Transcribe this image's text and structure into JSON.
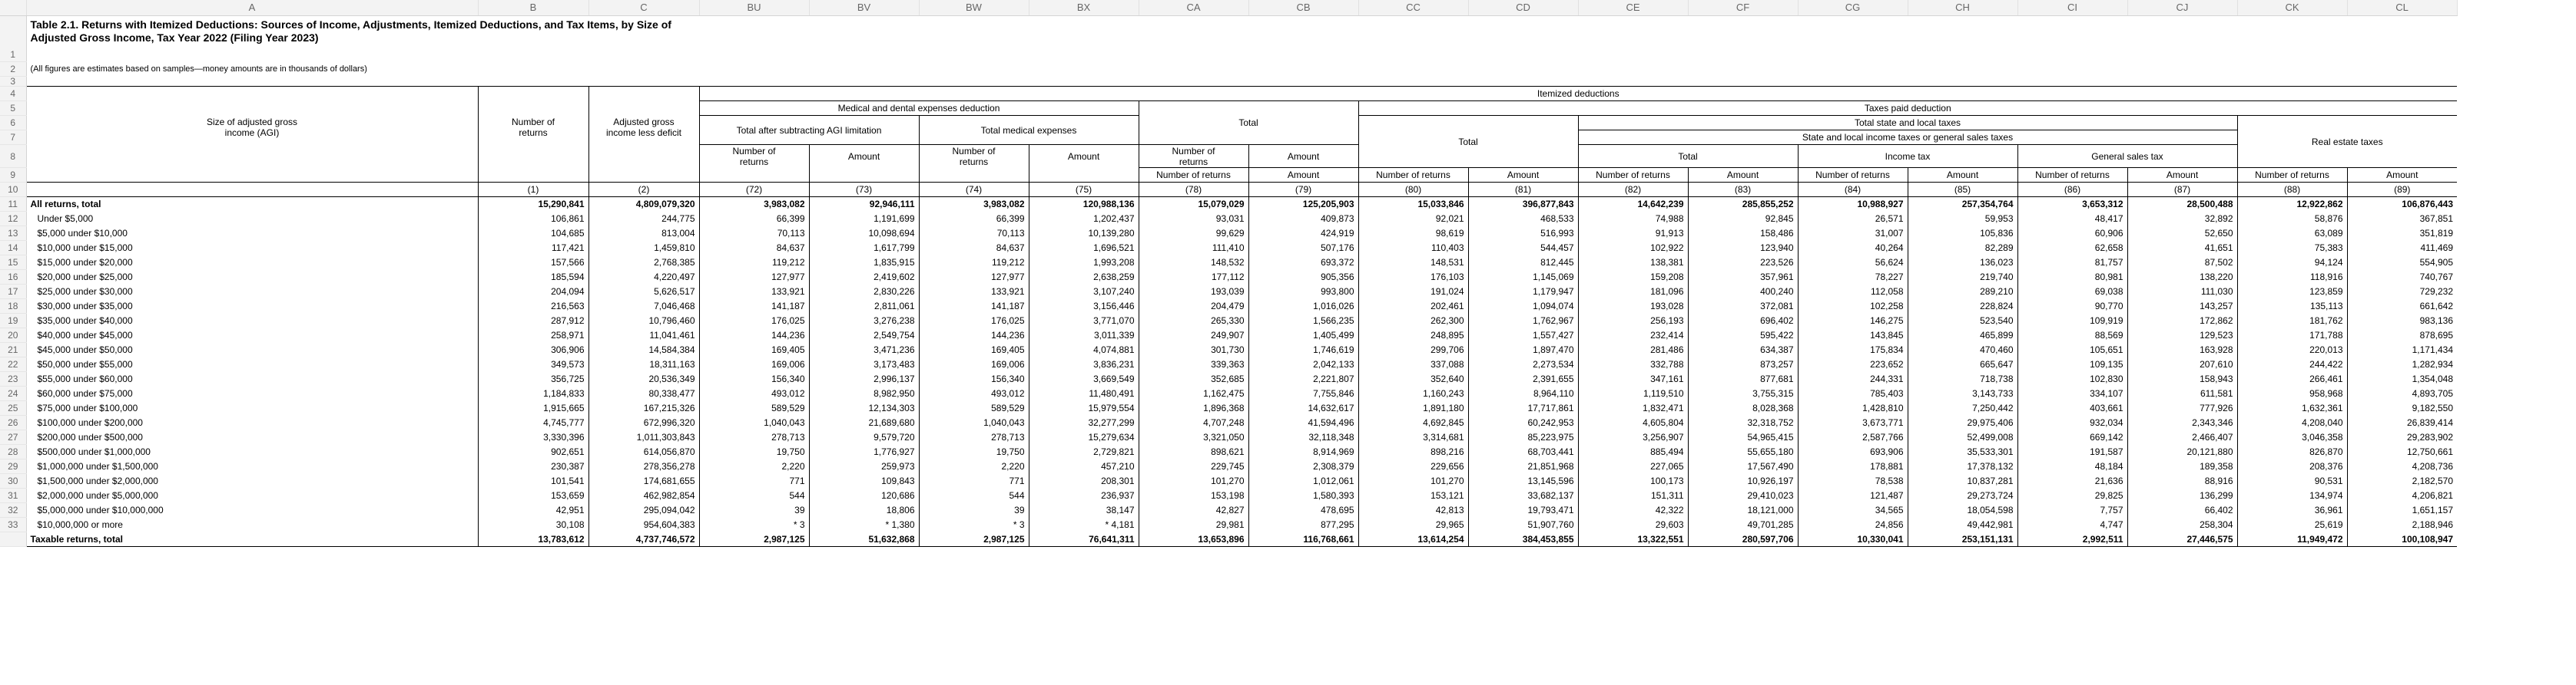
{
  "col_headers": [
    "A",
    "B",
    "C",
    "BU",
    "BV",
    "BW",
    "BX",
    "CA",
    "CB",
    "CC",
    "CD",
    "CE",
    "CF",
    "CG",
    "CH",
    "CI",
    "CJ",
    "CK",
    "CL"
  ],
  "row_numbers": [
    "1",
    "2",
    "3",
    "4",
    "5",
    "6",
    "7",
    "8",
    "9",
    "10",
    "11",
    "12",
    "13",
    "14",
    "15",
    "16",
    "17",
    "18",
    "19",
    "20",
    "21",
    "22",
    "23",
    "24",
    "25",
    "26",
    "27",
    "28",
    "29",
    "30",
    "31",
    "32",
    "33"
  ],
  "title": "Table 2.1.  Returns with Itemized Deductions: Sources of Income, Adjustments, Itemized Deductions, and Tax Items, by Size of Adjusted Gross Income, Tax Year 2022 (Filing Year 2023)",
  "note": "(All figures are estimates based on samples—money amounts are in thousands of dollars)",
  "headers": {
    "agi": "Size of adjusted gross income (AGI)",
    "num_returns": "Number of returns",
    "adj_gross": "Adjusted gross income less deficit",
    "itemized": "Itemized deductions",
    "medical": "Medical and dental expenses deduction",
    "total_after": "Total after subtracting AGI limitation",
    "total_medical": "Total medical expenses",
    "total": "Total",
    "taxes_paid": "Taxes paid deduction",
    "total_state_local": "Total state and local taxes",
    "state_local_income": "State and local income taxes or general sales taxes",
    "income_tax": "Income tax",
    "general_sales": "General sales tax",
    "real_estate": "Real estate taxes",
    "number_of_returns": "Number of returns",
    "amount": "Amount"
  },
  "col_numbers": [
    "(1)",
    "(2)",
    "(72)",
    "(73)",
    "(74)",
    "(75)",
    "(78)",
    "(79)",
    "(80)",
    "(81)",
    "(82)",
    "(83)",
    "(84)",
    "(85)",
    "(86)",
    "(87)",
    "(88)",
    "(89)"
  ],
  "rows": [
    {
      "label": "All returns, total",
      "bold": true,
      "values": [
        "15,290,841",
        "4,809,079,320",
        "3,983,082",
        "92,946,111",
        "3,983,082",
        "120,988,136",
        "15,079,029",
        "125,205,903",
        "15,033,846",
        "396,877,843",
        "14,642,239",
        "285,855,252",
        "10,988,927",
        "257,354,764",
        "3,653,312",
        "28,500,488",
        "12,922,862",
        "106,876,443"
      ]
    },
    {
      "label": "Under $5,000",
      "values": [
        "106,861",
        "244,775",
        "66,399",
        "1,191,699",
        "66,399",
        "1,202,437",
        "93,031",
        "409,873",
        "92,021",
        "468,533",
        "74,988",
        "92,845",
        "26,571",
        "59,953",
        "48,417",
        "32,892",
        "58,876",
        "367,851"
      ]
    },
    {
      "label": "$5,000 under $10,000",
      "values": [
        "104,685",
        "813,004",
        "70,113",
        "10,098,694",
        "70,113",
        "10,139,280",
        "99,629",
        "424,919",
        "98,619",
        "516,993",
        "91,913",
        "158,486",
        "31,007",
        "105,836",
        "60,906",
        "52,650",
        "63,089",
        "351,819"
      ]
    },
    {
      "label": "$10,000 under $15,000",
      "values": [
        "117,421",
        "1,459,810",
        "84,637",
        "1,617,799",
        "84,637",
        "1,696,521",
        "111,410",
        "507,176",
        "110,403",
        "544,457",
        "102,922",
        "123,940",
        "40,264",
        "82,289",
        "62,658",
        "41,651",
        "75,383",
        "411,469"
      ]
    },
    {
      "label": "$15,000 under $20,000",
      "values": [
        "157,566",
        "2,768,385",
        "119,212",
        "1,835,915",
        "119,212",
        "1,993,208",
        "148,532",
        "693,372",
        "148,531",
        "812,445",
        "138,381",
        "223,526",
        "56,624",
        "136,023",
        "81,757",
        "87,502",
        "94,124",
        "554,905"
      ]
    },
    {
      "label": "$20,000 under $25,000",
      "values": [
        "185,594",
        "4,220,497",
        "127,977",
        "2,419,602",
        "127,977",
        "2,638,259",
        "177,112",
        "905,356",
        "176,103",
        "1,145,069",
        "159,208",
        "357,961",
        "78,227",
        "219,740",
        "80,981",
        "138,220",
        "118,916",
        "740,767"
      ]
    },
    {
      "label": "$25,000 under $30,000",
      "values": [
        "204,094",
        "5,626,517",
        "133,921",
        "2,830,226",
        "133,921",
        "3,107,240",
        "193,039",
        "993,800",
        "191,024",
        "1,179,947",
        "181,096",
        "400,240",
        "112,058",
        "289,210",
        "69,038",
        "111,030",
        "123,859",
        "729,232"
      ]
    },
    {
      "label": "$30,000 under $35,000",
      "values": [
        "216,563",
        "7,046,468",
        "141,187",
        "2,811,061",
        "141,187",
        "3,156,446",
        "204,479",
        "1,016,026",
        "202,461",
        "1,094,074",
        "193,028",
        "372,081",
        "102,258",
        "228,824",
        "90,770",
        "143,257",
        "135,113",
        "661,642"
      ]
    },
    {
      "label": "$35,000 under $40,000",
      "values": [
        "287,912",
        "10,796,460",
        "176,025",
        "3,276,238",
        "176,025",
        "3,771,070",
        "265,330",
        "1,566,235",
        "262,300",
        "1,762,967",
        "256,193",
        "696,402",
        "146,275",
        "523,540",
        "109,919",
        "172,862",
        "181,762",
        "983,136"
      ]
    },
    {
      "label": "$40,000 under $45,000",
      "values": [
        "258,971",
        "11,041,461",
        "144,236",
        "2,549,754",
        "144,236",
        "3,011,339",
        "249,907",
        "1,405,499",
        "248,895",
        "1,557,427",
        "232,414",
        "595,422",
        "143,845",
        "465,899",
        "88,569",
        "129,523",
        "171,788",
        "878,695"
      ]
    },
    {
      "label": "$45,000 under $50,000",
      "values": [
        "306,906",
        "14,584,384",
        "169,405",
        "3,471,236",
        "169,405",
        "4,074,881",
        "301,730",
        "1,746,619",
        "299,706",
        "1,897,470",
        "281,486",
        "634,387",
        "175,834",
        "470,460",
        "105,651",
        "163,928",
        "220,013",
        "1,171,434"
      ]
    },
    {
      "label": "$50,000 under $55,000",
      "values": [
        "349,573",
        "18,311,163",
        "169,006",
        "3,173,483",
        "169,006",
        "3,836,231",
        "339,363",
        "2,042,133",
        "337,088",
        "2,273,534",
        "332,788",
        "873,257",
        "223,652",
        "665,647",
        "109,135",
        "207,610",
        "244,422",
        "1,282,934"
      ]
    },
    {
      "label": "$55,000 under $60,000",
      "values": [
        "356,725",
        "20,536,349",
        "156,340",
        "2,996,137",
        "156,340",
        "3,669,549",
        "352,685",
        "2,221,807",
        "352,640",
        "2,391,655",
        "347,161",
        "877,681",
        "244,331",
        "718,738",
        "102,830",
        "158,943",
        "266,461",
        "1,354,048"
      ]
    },
    {
      "label": "$60,000 under $75,000",
      "values": [
        "1,184,833",
        "80,338,477",
        "493,012",
        "8,982,950",
        "493,012",
        "11,480,491",
        "1,162,475",
        "7,755,846",
        "1,160,243",
        "8,964,110",
        "1,119,510",
        "3,755,315",
        "785,403",
        "3,143,733",
        "334,107",
        "611,581",
        "958,968",
        "4,893,705"
      ]
    },
    {
      "label": "$75,000 under $100,000",
      "values": [
        "1,915,665",
        "167,215,326",
        "589,529",
        "12,134,303",
        "589,529",
        "15,979,554",
        "1,896,368",
        "14,632,617",
        "1,891,180",
        "17,717,861",
        "1,832,471",
        "8,028,368",
        "1,428,810",
        "7,250,442",
        "403,661",
        "777,926",
        "1,632,361",
        "9,182,550"
      ]
    },
    {
      "label": "$100,000 under $200,000",
      "values": [
        "4,745,777",
        "672,996,320",
        "1,040,043",
        "21,689,680",
        "1,040,043",
        "32,277,299",
        "4,707,248",
        "41,594,496",
        "4,692,845",
        "60,242,953",
        "4,605,804",
        "32,318,752",
        "3,673,771",
        "29,975,406",
        "932,034",
        "2,343,346",
        "4,208,040",
        "26,839,414"
      ]
    },
    {
      "label": "$200,000 under $500,000",
      "values": [
        "3,330,396",
        "1,011,303,843",
        "278,713",
        "9,579,720",
        "278,713",
        "15,279,634",
        "3,321,050",
        "32,118,348",
        "3,314,681",
        "85,223,975",
        "3,256,907",
        "54,965,415",
        "2,587,766",
        "52,499,008",
        "669,142",
        "2,466,407",
        "3,046,358",
        "29,283,902"
      ]
    },
    {
      "label": "$500,000 under $1,000,000",
      "values": [
        "902,651",
        "614,056,870",
        "19,750",
        "1,776,927",
        "19,750",
        "2,729,821",
        "898,621",
        "8,914,969",
        "898,216",
        "68,703,441",
        "885,494",
        "55,655,180",
        "693,906",
        "35,533,301",
        "191,587",
        "20,121,880",
        "826,870",
        "12,750,661"
      ]
    },
    {
      "label": "$1,000,000 under $1,500,000",
      "values": [
        "230,387",
        "278,356,278",
        "2,220",
        "259,973",
        "2,220",
        "457,210",
        "229,745",
        "2,308,379",
        "229,656",
        "21,851,968",
        "227,065",
        "17,567,490",
        "178,881",
        "17,378,132",
        "48,184",
        "189,358",
        "208,376",
        "4,208,736"
      ]
    },
    {
      "label": "$1,500,000 under $2,000,000",
      "values": [
        "101,541",
        "174,681,655",
        "771",
        "109,843",
        "771",
        "208,301",
        "101,270",
        "1,012,061",
        "101,270",
        "13,145,596",
        "100,173",
        "10,926,197",
        "78,538",
        "10,837,281",
        "21,636",
        "88,916",
        "90,531",
        "2,182,570"
      ]
    },
    {
      "label": "$2,000,000 under $5,000,000",
      "values": [
        "153,659",
        "462,982,854",
        "544",
        "120,686",
        "544",
        "236,937",
        "153,198",
        "1,580,393",
        "153,121",
        "33,682,137",
        "151,311",
        "29,410,023",
        "121,487",
        "29,273,724",
        "29,825",
        "136,299",
        "134,974",
        "4,206,821"
      ]
    },
    {
      "label": "$5,000,000 under $10,000,000",
      "values": [
        "42,951",
        "295,094,042",
        "39",
        "18,806",
        "39",
        "38,147",
        "42,827",
        "478,695",
        "42,813",
        "19,793,471",
        "42,322",
        "18,121,000",
        "34,565",
        "18,054,598",
        "7,757",
        "66,402",
        "36,961",
        "1,651,157"
      ]
    },
    {
      "label": "$10,000,000 or more",
      "values": [
        "30,108",
        "954,604,383",
        "* 3",
        "* 1,380",
        "* 3",
        "* 4,181",
        "29,981",
        "877,295",
        "29,965",
        "51,907,760",
        "29,603",
        "49,701,285",
        "24,856",
        "49,442,981",
        "4,747",
        "258,304",
        "25,619",
        "2,188,946"
      ]
    },
    {
      "label": "Taxable returns, total",
      "bold": true,
      "values": [
        "13,783,612",
        "4,737,746,572",
        "2,987,125",
        "51,632,868",
        "2,987,125",
        "76,641,311",
        "13,653,896",
        "116,768,661",
        "13,614,254",
        "384,453,855",
        "13,322,551",
        "280,597,706",
        "10,330,041",
        "253,151,131",
        "2,992,511",
        "27,446,575",
        "11,949,472",
        "100,108,947"
      ]
    }
  ]
}
